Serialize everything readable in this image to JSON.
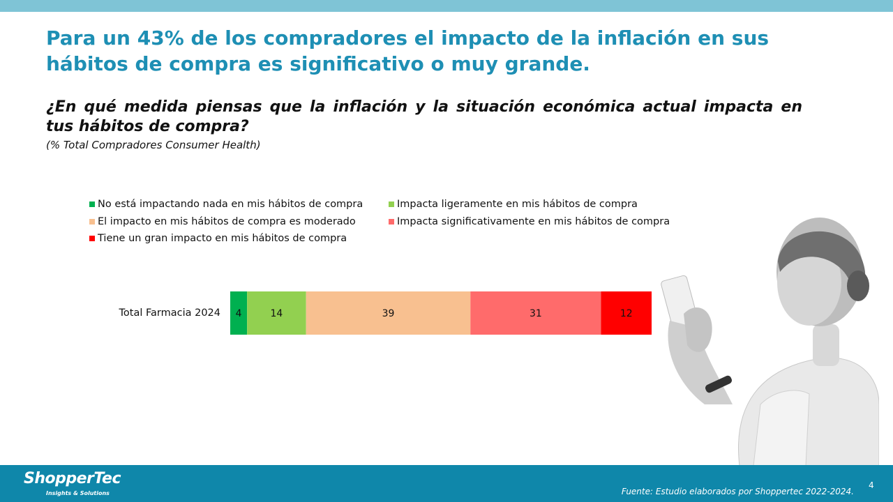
{
  "header": {
    "title": "Para un 43% de los compradores el impacto de la inflación en sus hábitos de compra es significativo o muy grande.",
    "question": "¿En qué medida piensas que la inflación y la situación económica actual impacta en tus hábitos de compra?",
    "base_note": "(% Total Compradores Consumer Health)"
  },
  "chart_data": {
    "type": "bar",
    "orientation": "horizontal",
    "stacked": true,
    "categories": [
      "Total Farmacia 2024"
    ],
    "series": [
      {
        "name": "No está impactando nada en mis hábitos de compra",
        "values": [
          4
        ],
        "color": "#00b050"
      },
      {
        "name": "Impacta ligeramente en mis hábitos de compra",
        "values": [
          14
        ],
        "color": "#92d050"
      },
      {
        "name": "El impacto en mis hábitos de compra es moderado",
        "values": [
          39
        ],
        "color": "#f8c090"
      },
      {
        "name": "Impacta significativamente en mis hábitos de compra",
        "values": [
          31
        ],
        "color": "#ff6b6b"
      },
      {
        "name": "Tiene un gran impacto en mis hábitos de compra",
        "values": [
          12
        ],
        "color": "#ff0000"
      }
    ],
    "xlim": [
      0,
      100
    ],
    "legend_position": "top",
    "grid": false,
    "data_labels": true
  },
  "footer": {
    "logo_text": "ShopperTec",
    "logo_tagline": "Insights & Solutions",
    "source": "Fuente: Estudio elaborados por Shoppertec 2022-2024.",
    "page_number": "4"
  }
}
